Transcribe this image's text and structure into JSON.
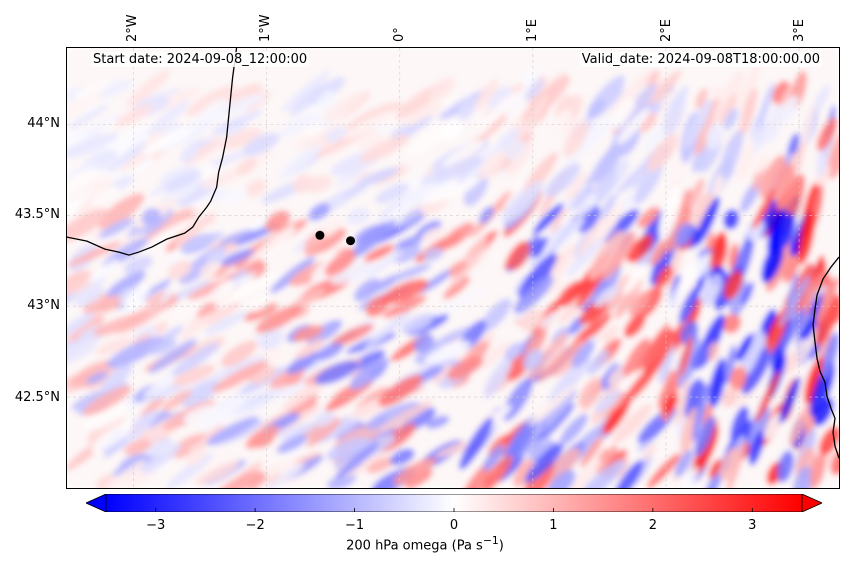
{
  "annotations": {
    "start_date": "Start date: 2024-09-08_12:00:00",
    "valid_date": "Valid_date: 2024-09-08T18:00:00.00"
  },
  "map": {
    "variable": "200 hPa omega",
    "lon_range": [
      -2.5,
      3.3
    ],
    "lat_range": [
      42.0,
      44.42
    ],
    "lat_ticks": [
      {
        "value": 44.0,
        "label": "44°N"
      },
      {
        "value": 43.5,
        "label": "43.5°N"
      },
      {
        "value": 43.0,
        "label": "43°N"
      },
      {
        "value": 42.5,
        "label": "42.5°N"
      }
    ],
    "lon_ticks": [
      {
        "value": -2,
        "label": "2°W"
      },
      {
        "value": -1,
        "label": "1°W"
      },
      {
        "value": 0,
        "label": "0°"
      },
      {
        "value": 1,
        "label": "1°E"
      },
      {
        "value": 2,
        "label": "2°E"
      },
      {
        "value": 3,
        "label": "3°E"
      }
    ],
    "points": [
      {
        "lon": -0.6,
        "lat": 43.39
      },
      {
        "lon": -0.37,
        "lat": 43.36
      }
    ],
    "colors": {
      "negative": "#0000ff",
      "neutral": "#ffffff",
      "positive": "#ff0000",
      "coast": "#000000",
      "grid": "#cccccc"
    }
  },
  "colorbar": {
    "label_text": "200 hPa omega (Pa s",
    "label_unit_sup": "−1",
    "label_close": ")",
    "range": [
      -3.5,
      3.5
    ],
    "extend": "both",
    "ticks": [
      {
        "value": -3,
        "label": "−3"
      },
      {
        "value": -2,
        "label": "−2"
      },
      {
        "value": -1,
        "label": "−1"
      },
      {
        "value": 0,
        "label": "0"
      },
      {
        "value": 1,
        "label": "1"
      },
      {
        "value": 2,
        "label": "2"
      },
      {
        "value": 3,
        "label": "3"
      }
    ]
  }
}
